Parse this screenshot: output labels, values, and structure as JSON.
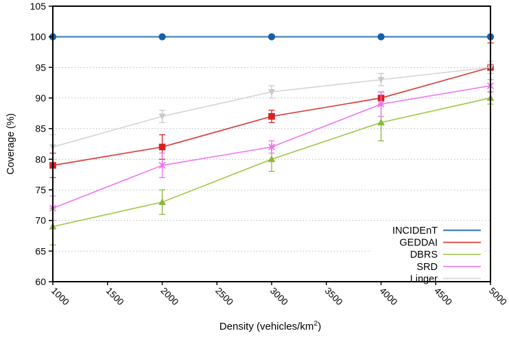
{
  "chart_data": {
    "type": "line",
    "title": "",
    "xlabel_prefix": "Density (vehicles/km",
    "xlabel_sup": "2",
    "xlabel_suffix": ")",
    "ylabel": "Coverage (%)",
    "x": [
      1000,
      2000,
      3000,
      4000,
      5000
    ],
    "xticks": [
      1000,
      1500,
      2000,
      2500,
      3000,
      3500,
      4000,
      4500,
      5000
    ],
    "yticks": [
      60,
      65,
      70,
      75,
      80,
      85,
      90,
      95,
      100,
      105
    ],
    "xlim": [
      1000,
      5000
    ],
    "ylim": [
      60,
      105
    ],
    "grid": "horizontal-dotted",
    "grid_color": "#b9b9b9",
    "legend_position": "bottom-right",
    "series": [
      {
        "name": "INCIDEnT",
        "line_color": "#4e89b8",
        "marker_color": "#1760a8",
        "marker": "circle",
        "lw": 2.4,
        "values": [
          100,
          100,
          100,
          100,
          100
        ],
        "err": [
          0,
          0,
          0,
          0,
          0
        ]
      },
      {
        "name": "GEDDAI",
        "line_color": "#d8403a",
        "marker_color": "#d8201f",
        "marker": "square",
        "lw": 1.7,
        "values": [
          79,
          82,
          87,
          90,
          95
        ],
        "err": [
          2,
          2,
          1,
          1,
          4
        ]
      },
      {
        "name": "DBRS",
        "line_color": "#a2c94c",
        "marker_color": "#8ab83b",
        "marker": "triangle-up",
        "lw": 1.7,
        "values": [
          69,
          73,
          80,
          86,
          90
        ],
        "err": [
          3,
          2,
          2,
          3,
          1
        ]
      },
      {
        "name": "SRD",
        "line_color": "#f07cf0",
        "marker_color": "#ee6fee",
        "marker": "asterisk",
        "lw": 1.7,
        "values": [
          72,
          79,
          82,
          89,
          92
        ],
        "err": [
          2,
          2,
          1,
          2,
          1
        ]
      },
      {
        "name": "Linger",
        "line_color": "#d6d6d6",
        "marker_color": "#c9c9c9",
        "marker": "triangle-down",
        "lw": 1.7,
        "values": [
          82,
          87,
          91,
          93,
          95
        ],
        "err": [
          2,
          1,
          1,
          1,
          1
        ]
      }
    ]
  }
}
